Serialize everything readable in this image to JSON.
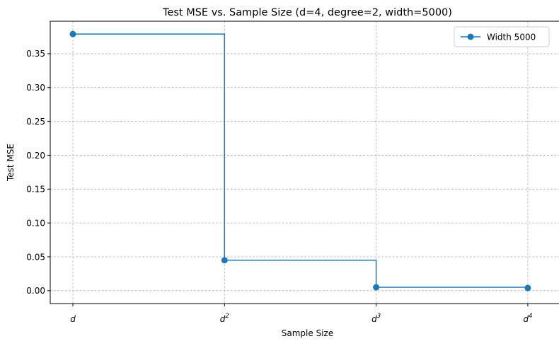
{
  "chart_data": {
    "type": "line",
    "title": "Test MSE vs. Sample Size (d=4, degree=2, width=5000)",
    "xlabel": "Sample Size",
    "ylabel": "Test MSE",
    "categories": [
      {
        "base": "d",
        "exp": ""
      },
      {
        "base": "d",
        "exp": "2"
      },
      {
        "base": "d",
        "exp": "3"
      },
      {
        "base": "d",
        "exp": "4"
      }
    ],
    "series": [
      {
        "name": "Width 5000",
        "values": [
          0.379,
          0.045,
          0.005,
          0.004
        ],
        "color": "#1f77b4",
        "drawstyle": "steps-post",
        "marker": "circle"
      }
    ],
    "yticks": [
      "0.00",
      "0.05",
      "0.10",
      "0.15",
      "0.20",
      "0.25",
      "0.30",
      "0.35"
    ],
    "ylim": [
      -0.019,
      0.398
    ],
    "grid": true,
    "legend": "top-right"
  }
}
